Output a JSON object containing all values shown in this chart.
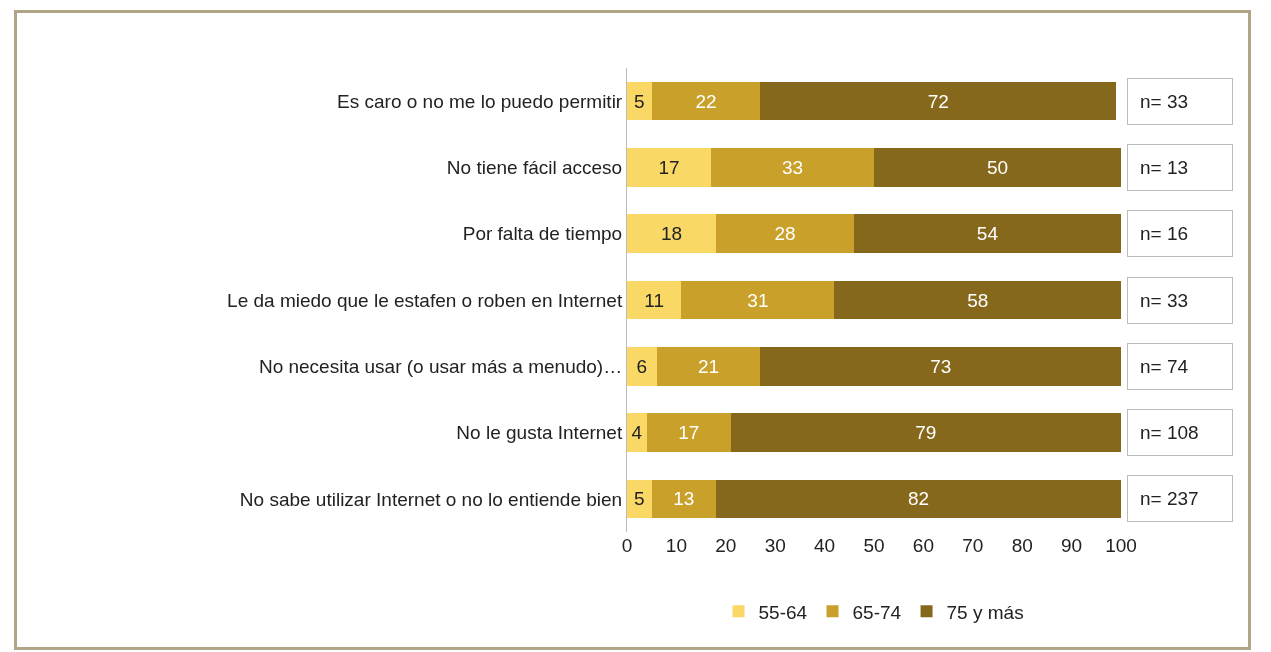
{
  "chart_data": {
    "type": "bar",
    "orientation": "horizontal",
    "stacked": true,
    "data_labels": true,
    "legend": "bottom",
    "grid": false,
    "categories": [
      "Es caro o no me lo puedo permitir",
      "No tiene fácil acceso",
      "Por falta de tiempo",
      "Le da miedo que le estafen o roben en Internet",
      "No necesita usar (o usar más a menudo)…",
      "No le gusta Internet",
      "No sabe utilizar Internet o no lo entiende bien"
    ],
    "series": [
      {
        "name": "55-64",
        "color": "#fad865",
        "values": [
          5,
          17,
          18,
          11,
          6,
          4,
          5
        ]
      },
      {
        "name": "65-74",
        "color": "#c8a02a",
        "values": [
          22,
          33,
          28,
          31,
          21,
          17,
          13
        ]
      },
      {
        "name": "75 y más",
        "color": "#86681c",
        "values": [
          72,
          50,
          54,
          58,
          73,
          79,
          82
        ]
      }
    ],
    "xlim": [
      0,
      100
    ],
    "xticks": [
      0,
      10,
      20,
      30,
      40,
      50,
      60,
      70,
      80,
      90,
      100
    ],
    "annotations": [
      "n= 33",
      "n= 13",
      "n= 16",
      "n= 33",
      "n= 74",
      "n= 108",
      "n= 237"
    ]
  }
}
